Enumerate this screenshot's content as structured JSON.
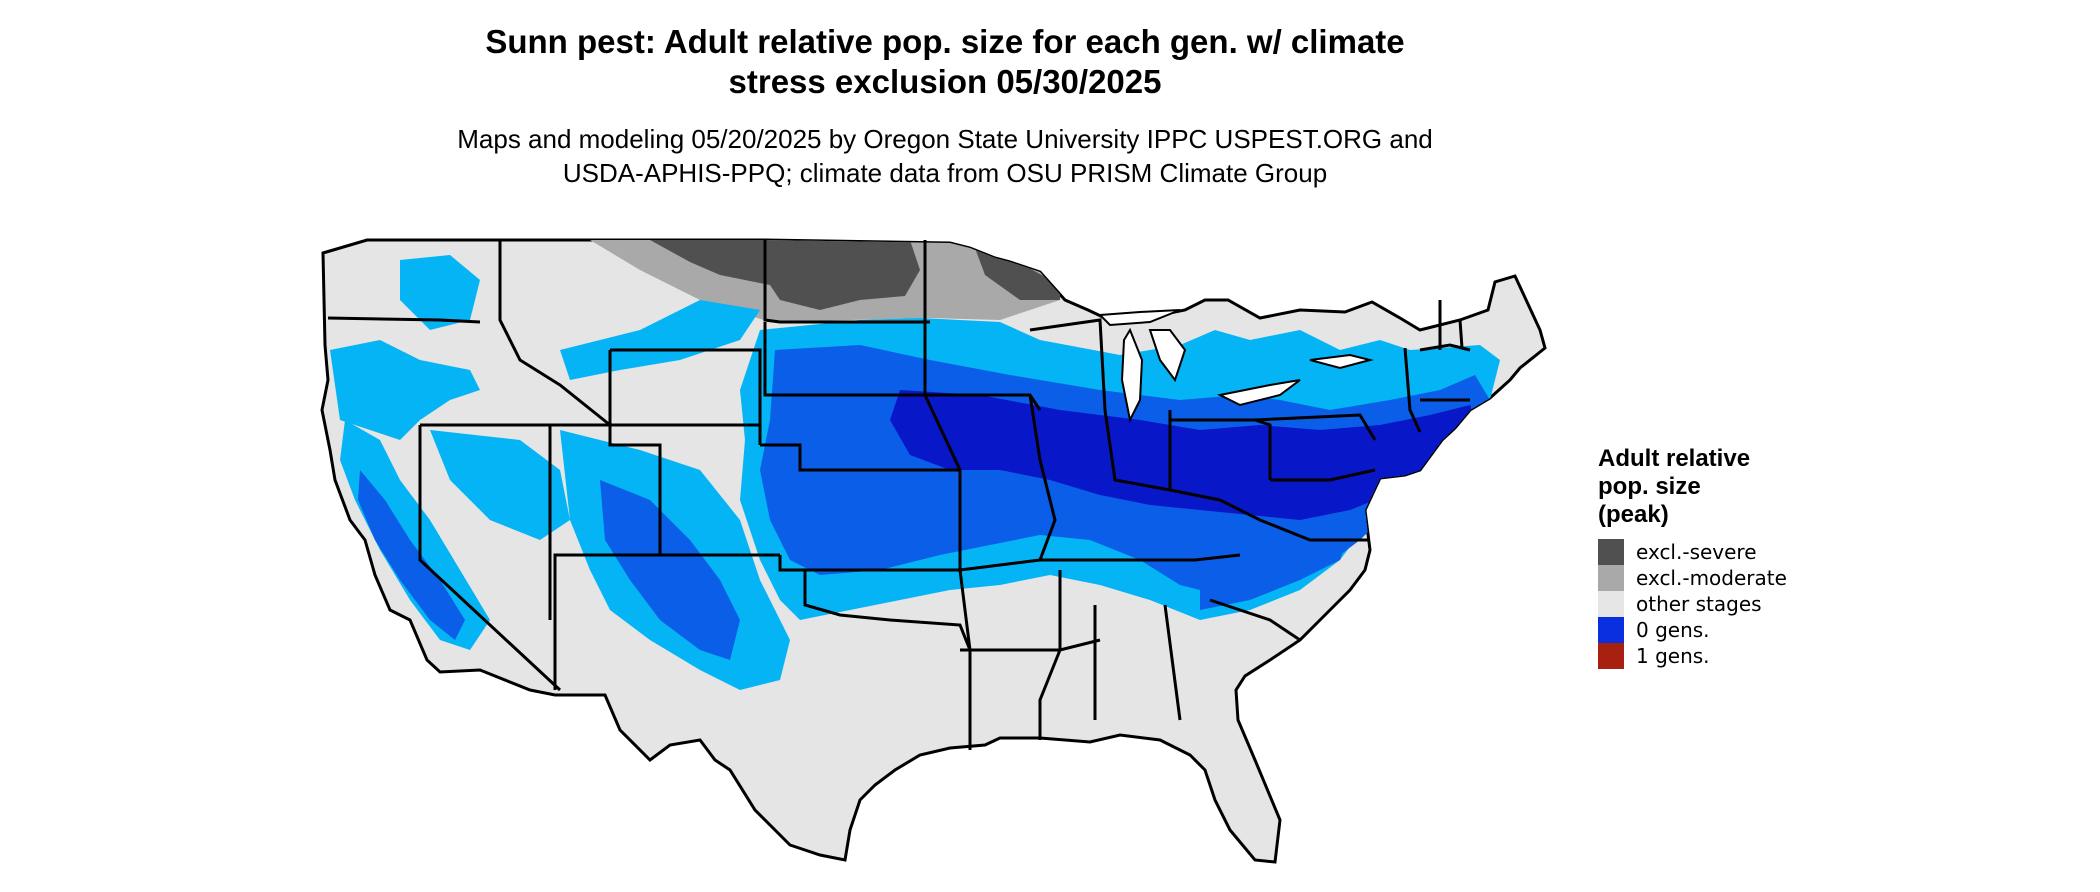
{
  "title": {
    "line1": "Sunn pest: Adult relative pop. size for each gen. w/ climate",
    "line2": "stress exclusion 05/30/2025"
  },
  "subtitle": {
    "line1": "Maps and modeling 05/20/2025 by Oregon State University IPPC USPEST.ORG and",
    "line2": "USDA-APHIS-PPQ; climate data from OSU PRISM Climate Group"
  },
  "legend": {
    "title_line1": "Adult relative",
    "title_line2": "pop. size",
    "title_line3": "(peak)",
    "items": [
      {
        "label": "excl.-severe",
        "color": "#505050"
      },
      {
        "label": "excl.-moderate",
        "color": "#a9a9a9"
      },
      {
        "label": "other stages",
        "color": "#e6e6e6"
      },
      {
        "label": "0 gens.",
        "color": "#0a2fe0"
      },
      {
        "label": "1 gens.",
        "color": "#a82010"
      }
    ]
  },
  "map_colors": {
    "land": "#e5e5e5",
    "light_blue": "#05b4f5",
    "mid_blue": "#0a5ee8",
    "deep_blue": "#0818c8",
    "state_border": "#000000"
  }
}
